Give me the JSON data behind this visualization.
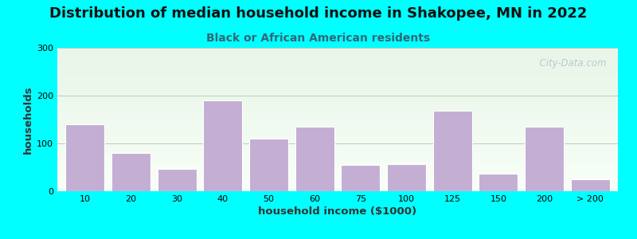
{
  "title": "Distribution of median household income in Shakopee, MN in 2022",
  "subtitle": "Black or African American residents",
  "xlabel": "household income ($1000)",
  "ylabel": "households",
  "background_outer": "#00FFFF",
  "bar_color": "#C4AED4",
  "bar_edge_color": "#FFFFFF",
  "categories": [
    "10",
    "20",
    "30",
    "40",
    "50",
    "60",
    "75",
    "100",
    "125",
    "150",
    "200",
    "> 200"
  ],
  "values": [
    140,
    80,
    47,
    190,
    110,
    135,
    55,
    57,
    168,
    37,
    135,
    25
  ],
  "ylim": [
    0,
    300
  ],
  "yticks": [
    0,
    100,
    200,
    300
  ],
  "plot_bg_color_top": "#E8F5E8",
  "plot_bg_color_bottom": "#F8FFF8",
  "watermark": "  City-Data.com",
  "title_fontsize": 13,
  "subtitle_fontsize": 10,
  "axis_label_fontsize": 9.5
}
